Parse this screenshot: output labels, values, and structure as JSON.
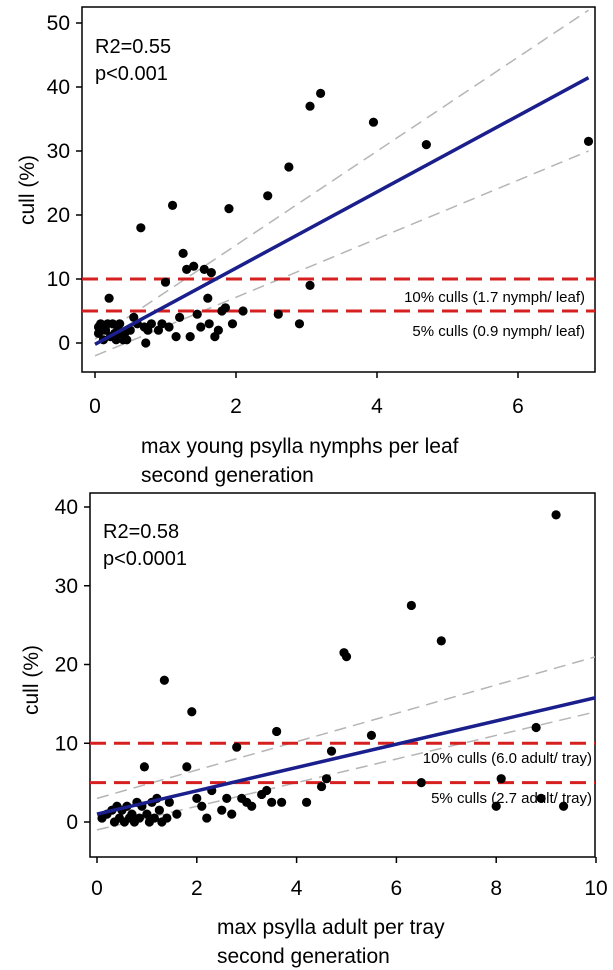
{
  "chart_data": [
    {
      "type": "scatter",
      "title": "",
      "xlabel": [
        "max young psylla nymphs per leaf",
        "second generation"
      ],
      "ylabel": "cull (%)",
      "xlim": [
        -0.2,
        7
      ],
      "ylim": [
        -5,
        50
      ],
      "xticks": [
        0,
        2,
        4,
        6
      ],
      "yticks": [
        0,
        10,
        20,
        30,
        40,
        50
      ],
      "grid": false,
      "stats": [
        "R2=0.55",
        "p<0.001"
      ],
      "regression": {
        "slope": 5.95,
        "intercept": -0.2
      },
      "confidence_band": {
        "upper": [
          [
            0,
            0.6
          ],
          [
            7,
            52
          ]
        ],
        "lower": [
          [
            0,
            -2
          ],
          [
            7,
            30
          ]
        ]
      },
      "reference_lines": [
        {
          "y": 10,
          "label": "10% culls (1.7 nymph/ leaf)"
        },
        {
          "y": 5,
          "label": "5% culls (0.9 nymph/ leaf)"
        }
      ],
      "points": [
        [
          0.05,
          1.5
        ],
        [
          0.05,
          2.5
        ],
        [
          0.08,
          3
        ],
        [
          0.1,
          2
        ],
        [
          0.12,
          0.5
        ],
        [
          0.15,
          2
        ],
        [
          0.18,
          3
        ],
        [
          0.2,
          7
        ],
        [
          0.22,
          1
        ],
        [
          0.25,
          3
        ],
        [
          0.28,
          1.5
        ],
        [
          0.3,
          0.5
        ],
        [
          0.32,
          2.5
        ],
        [
          0.35,
          3
        ],
        [
          0.38,
          1
        ],
        [
          0.4,
          0.5
        ],
        [
          0.42,
          1.5
        ],
        [
          0.45,
          0.5
        ],
        [
          0.5,
          2
        ],
        [
          0.55,
          4
        ],
        [
          0.6,
          3
        ],
        [
          0.65,
          18
        ],
        [
          0.7,
          2.5
        ],
        [
          0.72,
          0
        ],
        [
          0.75,
          2
        ],
        [
          0.8,
          3
        ],
        [
          0.9,
          2
        ],
        [
          0.95,
          3
        ],
        [
          1.0,
          9.5
        ],
        [
          1.05,
          2.5
        ],
        [
          1.1,
          21.5
        ],
        [
          1.15,
          1
        ],
        [
          1.2,
          4
        ],
        [
          1.25,
          14
        ],
        [
          1.3,
          11.5
        ],
        [
          1.35,
          1
        ],
        [
          1.4,
          12
        ],
        [
          1.45,
          4.5
        ],
        [
          1.5,
          2.5
        ],
        [
          1.55,
          11.5
        ],
        [
          1.6,
          7
        ],
        [
          1.62,
          3
        ],
        [
          1.65,
          11
        ],
        [
          1.7,
          1
        ],
        [
          1.75,
          2
        ],
        [
          1.8,
          5
        ],
        [
          1.85,
          5.5
        ],
        [
          1.9,
          21
        ],
        [
          1.95,
          3
        ],
        [
          2.1,
          5
        ],
        [
          2.45,
          23
        ],
        [
          2.6,
          4.5
        ],
        [
          2.75,
          27.5
        ],
        [
          2.9,
          3
        ],
        [
          3.05,
          37
        ],
        [
          3.05,
          9
        ],
        [
          3.2,
          39
        ],
        [
          3.95,
          34.5
        ],
        [
          4.7,
          31
        ],
        [
          7.0,
          31.5
        ]
      ]
    },
    {
      "type": "scatter",
      "title": "",
      "xlabel": [
        "max psylla adult per tray",
        "second generation"
      ],
      "ylabel": "cull (%)",
      "xlim": [
        -0.2,
        10
      ],
      "ylim": [
        -5,
        40
      ],
      "xticks": [
        0,
        2,
        4,
        6,
        8,
        10
      ],
      "yticks": [
        0,
        10,
        20,
        30,
        40
      ],
      "grid": false,
      "stats": [
        "R2=0.58",
        "p<0.0001"
      ],
      "regression": {
        "slope": 1.48,
        "intercept": 1.0
      },
      "confidence_band": {
        "upper": [
          [
            0,
            3
          ],
          [
            10,
            21
          ]
        ],
        "lower": [
          [
            0,
            -1
          ],
          [
            10,
            14
          ]
        ]
      },
      "reference_lines": [
        {
          "y": 10,
          "label": "10% culls (6.0 adult/ tray)"
        },
        {
          "y": 5,
          "label": "5% culls (2.7 adult/ tray)"
        }
      ],
      "points": [
        [
          0.1,
          0.5
        ],
        [
          0.2,
          1
        ],
        [
          0.3,
          1.5
        ],
        [
          0.35,
          0
        ],
        [
          0.4,
          2
        ],
        [
          0.45,
          0.5
        ],
        [
          0.5,
          1.5
        ],
        [
          0.55,
          0
        ],
        [
          0.6,
          2
        ],
        [
          0.65,
          0.5
        ],
        [
          0.7,
          1
        ],
        [
          0.75,
          0
        ],
        [
          0.8,
          2.5
        ],
        [
          0.85,
          0.5
        ],
        [
          0.9,
          2
        ],
        [
          0.95,
          7
        ],
        [
          1.0,
          1
        ],
        [
          1.05,
          0
        ],
        [
          1.1,
          2.5
        ],
        [
          1.15,
          0.5
        ],
        [
          1.2,
          3
        ],
        [
          1.25,
          1.5
        ],
        [
          1.3,
          0
        ],
        [
          1.35,
          18
        ],
        [
          1.4,
          0.5
        ],
        [
          1.45,
          2.5
        ],
        [
          1.6,
          1
        ],
        [
          1.8,
          7
        ],
        [
          1.9,
          14
        ],
        [
          2.0,
          3
        ],
        [
          2.1,
          2
        ],
        [
          2.2,
          0.5
        ],
        [
          2.3,
          4
        ],
        [
          2.5,
          1.5
        ],
        [
          2.6,
          3
        ],
        [
          2.7,
          1
        ],
        [
          2.8,
          9.5
        ],
        [
          2.9,
          3
        ],
        [
          3.0,
          2.5
        ],
        [
          3.1,
          2
        ],
        [
          3.3,
          3.5
        ],
        [
          3.4,
          4
        ],
        [
          3.5,
          2.5
        ],
        [
          3.6,
          11.5
        ],
        [
          3.7,
          2.5
        ],
        [
          4.2,
          2.5
        ],
        [
          4.5,
          4.5
        ],
        [
          4.6,
          5.5
        ],
        [
          4.7,
          9
        ],
        [
          4.95,
          21.5
        ],
        [
          5.0,
          21
        ],
        [
          5.5,
          11
        ],
        [
          6.3,
          27.5
        ],
        [
          6.5,
          5
        ],
        [
          6.9,
          23
        ],
        [
          8.0,
          2
        ],
        [
          8.1,
          5.5
        ],
        [
          8.8,
          12
        ],
        [
          8.9,
          3
        ],
        [
          9.2,
          39
        ],
        [
          9.35,
          2
        ]
      ]
    }
  ]
}
